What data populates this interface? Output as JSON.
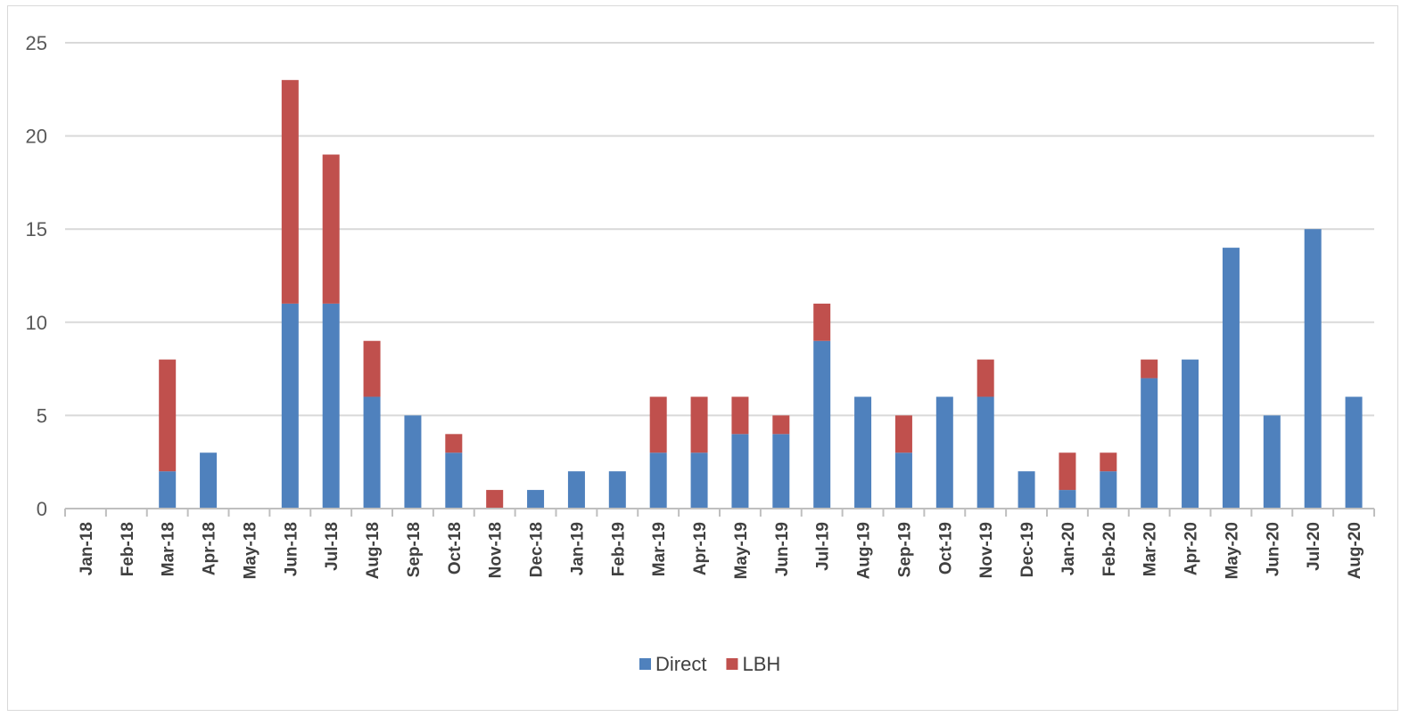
{
  "chart_data": {
    "type": "bar",
    "stacked": true,
    "categories": [
      "Jan-18",
      "Feb-18",
      "Mar-18",
      "Apr-18",
      "May-18",
      "Jun-18",
      "Jul-18",
      "Aug-18",
      "Sep-18",
      "Oct-18",
      "Nov-18",
      "Dec-18",
      "Jan-19",
      "Feb-19",
      "Mar-19",
      "Apr-19",
      "May-19",
      "Jun-19",
      "Jul-19",
      "Aug-19",
      "Sep-19",
      "Oct-19",
      "Nov-19",
      "Dec-19",
      "Jan-20",
      "Feb-20",
      "Mar-20",
      "Apr-20",
      "May-20",
      "Jun-20",
      "Jul-20",
      "Aug-20"
    ],
    "series": [
      {
        "name": "Direct",
        "color": "#4f81bd",
        "values": [
          0,
          0,
          2,
          3,
          0,
          11,
          11,
          6,
          5,
          3,
          0,
          1,
          2,
          2,
          3,
          3,
          4,
          4,
          9,
          6,
          3,
          6,
          6,
          2,
          1,
          2,
          7,
          8,
          14,
          5,
          15,
          6
        ]
      },
      {
        "name": "LBH",
        "color": "#c0504d",
        "values": [
          0,
          0,
          6,
          0,
          0,
          12,
          8,
          3,
          0,
          1,
          1,
          0,
          0,
          0,
          3,
          3,
          2,
          1,
          2,
          0,
          2,
          0,
          2,
          0,
          2,
          1,
          1,
          0,
          0,
          0,
          0,
          0
        ]
      }
    ],
    "ylim": [
      0,
      25
    ],
    "yticks": [
      0,
      5,
      10,
      15,
      20,
      25
    ],
    "grid": true,
    "legend": "bottom",
    "title": "",
    "xlabel": "",
    "ylabel": ""
  }
}
